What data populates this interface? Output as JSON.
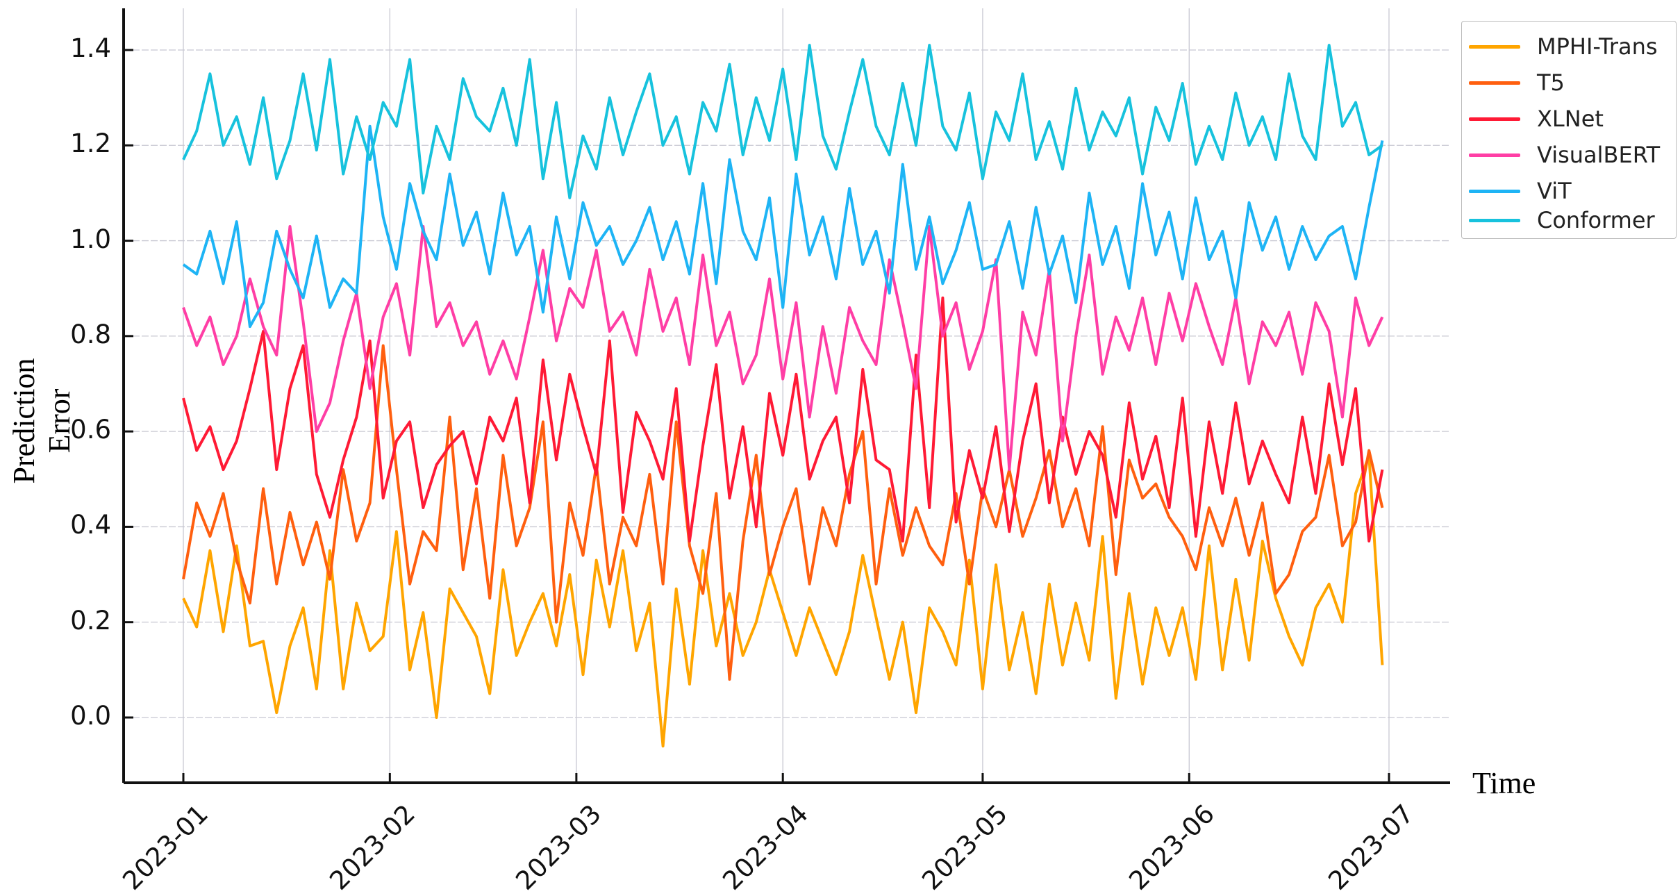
{
  "chart_data": {
    "type": "line",
    "title": "",
    "xlabel": "Time",
    "ylabel": "Prediction Error",
    "ylim": [
      -0.21,
      1.48
    ],
    "xlim": [
      "2022-12-23",
      "2023-07-10"
    ],
    "grid": true,
    "legend_position": "upper right (outside)",
    "y_ticks": [
      "0.0",
      "0.2",
      "0.4",
      "0.6",
      "0.8",
      "1.0",
      "1.2",
      "1.4"
    ],
    "x_ticks": [
      "2023-01",
      "2023-02",
      "2023-03",
      "2023-04",
      "2023-05",
      "2023-06",
      "2023-07"
    ],
    "x_tick_days": [
      0,
      31,
      59,
      90,
      120,
      151,
      181
    ],
    "x_start": "2023-01-01",
    "x_step_days": 2,
    "series": [
      {
        "name": "MPHI-Trans",
        "color": "#FFA500",
        "values": [
          0.25,
          0.19,
          0.35,
          0.18,
          0.36,
          0.15,
          0.16,
          0.01,
          0.15,
          0.23,
          0.06,
          0.35,
          0.06,
          0.24,
          0.14,
          0.17,
          0.39,
          0.1,
          0.22,
          0.0,
          0.27,
          0.22,
          0.17,
          0.05,
          0.31,
          0.13,
          0.2,
          0.26,
          0.15,
          0.3,
          0.09,
          0.33,
          0.19,
          0.35,
          0.14,
          0.24,
          -0.06,
          0.27,
          0.07,
          0.35,
          0.15,
          0.26,
          0.13,
          0.2,
          0.31,
          0.22,
          0.13,
          0.23,
          0.16,
          0.09,
          0.18,
          0.34,
          0.21,
          0.08,
          0.2,
          0.01,
          0.23,
          0.18,
          0.11,
          0.33,
          0.06,
          0.32,
          0.1,
          0.22,
          0.05,
          0.28,
          0.11,
          0.24,
          0.12,
          0.38,
          0.04,
          0.26,
          0.07,
          0.23,
          0.13,
          0.23,
          0.08,
          0.36,
          0.1,
          0.29,
          0.12,
          0.37,
          0.25,
          0.17,
          0.11,
          0.23,
          0.28,
          0.2,
          0.47,
          0.55,
          0.11
        ]
      },
      {
        "name": "T5",
        "color": "#FF5F0F",
        "values": [
          0.29,
          0.45,
          0.38,
          0.47,
          0.33,
          0.24,
          0.48,
          0.28,
          0.43,
          0.32,
          0.41,
          0.29,
          0.52,
          0.37,
          0.45,
          0.78,
          0.52,
          0.28,
          0.39,
          0.35,
          0.63,
          0.31,
          0.48,
          0.25,
          0.55,
          0.36,
          0.44,
          0.62,
          0.2,
          0.45,
          0.34,
          0.53,
          0.28,
          0.42,
          0.36,
          0.51,
          0.28,
          0.62,
          0.36,
          0.26,
          0.47,
          0.08,
          0.37,
          0.55,
          0.3,
          0.4,
          0.48,
          0.28,
          0.44,
          0.36,
          0.51,
          0.6,
          0.28,
          0.48,
          0.34,
          0.44,
          0.36,
          0.32,
          0.47,
          0.28,
          0.48,
          0.4,
          0.52,
          0.38,
          0.46,
          0.56,
          0.4,
          0.48,
          0.36,
          0.61,
          0.3,
          0.54,
          0.46,
          0.49,
          0.42,
          0.38,
          0.31,
          0.44,
          0.36,
          0.46,
          0.34,
          0.45,
          0.26,
          0.3,
          0.39,
          0.42,
          0.55,
          0.36,
          0.41,
          0.56,
          0.44
        ]
      },
      {
        "name": "XLNet",
        "color": "#FF1A35",
        "values": [
          0.67,
          0.56,
          0.61,
          0.52,
          0.58,
          0.69,
          0.81,
          0.52,
          0.69,
          0.78,
          0.51,
          0.42,
          0.54,
          0.63,
          0.79,
          0.46,
          0.58,
          0.62,
          0.44,
          0.53,
          0.57,
          0.6,
          0.49,
          0.63,
          0.58,
          0.67,
          0.45,
          0.75,
          0.54,
          0.72,
          0.61,
          0.51,
          0.79,
          0.43,
          0.64,
          0.58,
          0.5,
          0.69,
          0.37,
          0.57,
          0.74,
          0.46,
          0.61,
          0.4,
          0.68,
          0.55,
          0.72,
          0.5,
          0.58,
          0.63,
          0.45,
          0.73,
          0.54,
          0.52,
          0.37,
          0.76,
          0.44,
          0.88,
          0.41,
          0.56,
          0.46,
          0.61,
          0.39,
          0.58,
          0.7,
          0.45,
          0.63,
          0.51,
          0.6,
          0.55,
          0.42,
          0.66,
          0.5,
          0.59,
          0.44,
          0.67,
          0.38,
          0.62,
          0.47,
          0.66,
          0.49,
          0.58,
          0.51,
          0.45,
          0.63,
          0.47,
          0.7,
          0.53,
          0.69,
          0.37,
          0.52
        ]
      },
      {
        "name": "VisualBERT",
        "color": "#FF3EA5",
        "values": [
          0.86,
          0.78,
          0.84,
          0.74,
          0.8,
          0.92,
          0.82,
          0.76,
          1.03,
          0.83,
          0.6,
          0.66,
          0.79,
          0.89,
          0.69,
          0.84,
          0.91,
          0.76,
          1.03,
          0.82,
          0.87,
          0.78,
          0.83,
          0.72,
          0.79,
          0.71,
          0.84,
          0.98,
          0.79,
          0.9,
          0.86,
          0.98,
          0.81,
          0.85,
          0.76,
          0.94,
          0.81,
          0.88,
          0.74,
          0.97,
          0.78,
          0.85,
          0.7,
          0.76,
          0.92,
          0.71,
          0.87,
          0.63,
          0.82,
          0.68,
          0.86,
          0.79,
          0.74,
          0.96,
          0.83,
          0.69,
          1.03,
          0.8,
          0.87,
          0.73,
          0.81,
          0.96,
          0.52,
          0.85,
          0.76,
          0.94,
          0.58,
          0.8,
          0.97,
          0.72,
          0.84,
          0.77,
          0.88,
          0.74,
          0.89,
          0.79,
          0.91,
          0.82,
          0.74,
          0.88,
          0.7,
          0.83,
          0.78,
          0.85,
          0.72,
          0.87,
          0.81,
          0.63,
          0.88,
          0.78,
          0.84
        ]
      },
      {
        "name": "ViT",
        "color": "#1EB4F5",
        "values": [
          0.95,
          0.93,
          1.02,
          0.91,
          1.04,
          0.82,
          0.87,
          1.02,
          0.94,
          0.88,
          1.01,
          0.86,
          0.92,
          0.89,
          1.24,
          1.05,
          0.94,
          1.12,
          1.02,
          0.96,
          1.14,
          0.99,
          1.06,
          0.93,
          1.1,
          0.97,
          1.03,
          0.85,
          1.05,
          0.92,
          1.08,
          0.99,
          1.03,
          0.95,
          1.0,
          1.07,
          0.96,
          1.04,
          0.93,
          1.12,
          0.91,
          1.17,
          1.02,
          0.96,
          1.09,
          0.86,
          1.14,
          0.97,
          1.05,
          0.92,
          1.11,
          0.95,
          1.02,
          0.89,
          1.16,
          0.94,
          1.05,
          0.91,
          0.98,
          1.08,
          0.94,
          0.95,
          1.04,
          0.9,
          1.07,
          0.93,
          1.01,
          0.87,
          1.1,
          0.95,
          1.03,
          0.9,
          1.12,
          0.97,
          1.06,
          0.92,
          1.09,
          0.96,
          1.02,
          0.88,
          1.08,
          0.98,
          1.05,
          0.94,
          1.03,
          0.96,
          1.01,
          1.03,
          0.92,
          1.07,
          1.21
        ]
      },
      {
        "name": "Conformer",
        "color": "#17C2DD",
        "values": [
          1.17,
          1.23,
          1.35,
          1.2,
          1.26,
          1.16,
          1.3,
          1.13,
          1.21,
          1.35,
          1.19,
          1.38,
          1.14,
          1.26,
          1.17,
          1.29,
          1.24,
          1.38,
          1.1,
          1.24,
          1.17,
          1.34,
          1.26,
          1.23,
          1.32,
          1.2,
          1.38,
          1.13,
          1.29,
          1.09,
          1.22,
          1.15,
          1.3,
          1.18,
          1.27,
          1.35,
          1.2,
          1.26,
          1.14,
          1.29,
          1.23,
          1.37,
          1.18,
          1.3,
          1.21,
          1.36,
          1.17,
          1.41,
          1.22,
          1.15,
          1.27,
          1.38,
          1.24,
          1.18,
          1.33,
          1.2,
          1.41,
          1.24,
          1.19,
          1.31,
          1.13,
          1.27,
          1.21,
          1.35,
          1.17,
          1.25,
          1.15,
          1.32,
          1.19,
          1.27,
          1.22,
          1.3,
          1.14,
          1.28,
          1.21,
          1.33,
          1.16,
          1.24,
          1.17,
          1.31,
          1.2,
          1.26,
          1.17,
          1.35,
          1.22,
          1.17,
          1.41,
          1.24,
          1.29,
          1.18,
          1.2
        ]
      }
    ]
  },
  "axes": {
    "xlabel": "Time",
    "ylabel": "Prediction Error"
  },
  "legend": {
    "items": [
      "MPHI-Trans",
      "T5",
      "XLNet",
      "VisualBERT",
      "ViT",
      "Conformer"
    ]
  }
}
